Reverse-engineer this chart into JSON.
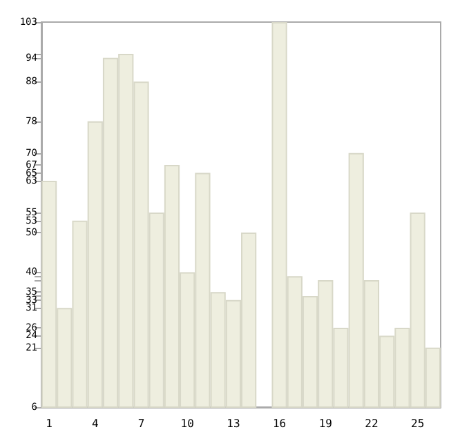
{
  "chart_data": {
    "type": "bar",
    "categories": [
      "1",
      null,
      null,
      "4",
      null,
      null,
      "7",
      null,
      null,
      "10",
      null,
      null,
      "13",
      null,
      null,
      "16",
      null,
      null,
      "19",
      null,
      null,
      "22",
      null,
      null,
      "25",
      null
    ],
    "values": [
      63,
      31,
      53,
      78,
      94,
      95,
      88,
      55,
      67,
      40,
      65,
      35,
      33,
      50,
      6,
      103,
      39,
      34,
      38,
      26,
      70,
      38,
      24,
      26,
      55,
      21
    ],
    "color": "#eeeedf",
    "ylim": [
      6,
      103
    ],
    "yticks": [
      6,
      21,
      24,
      26,
      31,
      33,
      {
        "value": 34,
        "label": null
      },
      35,
      {
        "value": 38,
        "label": null
      },
      {
        "value": 39,
        "label": null
      },
      40,
      50,
      53,
      55,
      63,
      65,
      67,
      70,
      78,
      88,
      94,
      {
        "value": 95,
        "label": null
      },
      103
    ],
    "grid": false
  }
}
